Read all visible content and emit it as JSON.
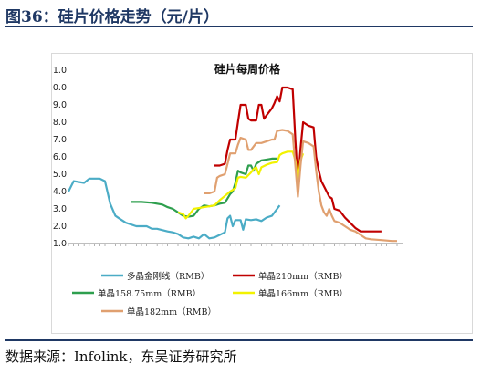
{
  "page": {
    "figure_title": "图36：硅片价格走势（元/片）",
    "source": "数据来源：Infolink，东吴证券研究所"
  },
  "colors": {
    "title": "#1f3864",
    "multi": "#4bacc6",
    "s210": "#c00000",
    "s158": "#2e9f4e",
    "s166": "#f2f200",
    "s182": "#e0a070"
  },
  "chart_data": {
    "type": "line",
    "title": "硅片每周价格",
    "xlabel": "",
    "ylabel": "",
    "ylim": [
      1.0,
      11.0
    ],
    "yticks": [
      "11.0",
      "10.0",
      "9.0",
      "8.0",
      "7.0",
      "6.0",
      "5.0",
      "4.0",
      "3.0",
      "2.0",
      "1.0"
    ],
    "x_tick_count": 64,
    "x_range": [
      0,
      63
    ],
    "grid": false,
    "legend_position": "bottom",
    "series": [
      {
        "name": "多晶金刚线（RMB）",
        "color": "#4bacc6",
        "points": [
          [
            0,
            4.0
          ],
          [
            1,
            4.6
          ],
          [
            3,
            4.5
          ],
          [
            4,
            4.75
          ],
          [
            6,
            4.75
          ],
          [
            7,
            4.6
          ],
          [
            8,
            3.3
          ],
          [
            9,
            2.6
          ],
          [
            10,
            2.4
          ],
          [
            11,
            2.2
          ],
          [
            13,
            2.0
          ],
          [
            14,
            2.0
          ],
          [
            15,
            2.0
          ],
          [
            16,
            1.85
          ],
          [
            17,
            1.85
          ],
          [
            19,
            1.7
          ],
          [
            20,
            1.65
          ],
          [
            21,
            1.55
          ],
          [
            22,
            1.35
          ],
          [
            23,
            1.3
          ],
          [
            24,
            1.4
          ],
          [
            25,
            1.3
          ],
          [
            26,
            1.55
          ],
          [
            27,
            1.3
          ],
          [
            28,
            1.35
          ],
          [
            29,
            1.5
          ],
          [
            30,
            1.65
          ],
          [
            30.5,
            2.45
          ],
          [
            31,
            2.6
          ],
          [
            31.5,
            2.0
          ],
          [
            32,
            2.35
          ],
          [
            33,
            2.35
          ],
          [
            33.5,
            1.8
          ],
          [
            34,
            2.4
          ],
          [
            35,
            2.35
          ],
          [
            36,
            2.4
          ],
          [
            37,
            2.3
          ],
          [
            38,
            2.5
          ],
          [
            39,
            2.6
          ],
          [
            40,
            3.0
          ],
          [
            40.5,
            3.2
          ]
        ]
      },
      {
        "name": "单晶210mm（RMB）",
        "color": "#c00000",
        "points": [
          [
            28,
            5.5
          ],
          [
            29,
            5.5
          ],
          [
            30,
            5.6
          ],
          [
            30.5,
            6.4
          ],
          [
            31,
            7.0
          ],
          [
            32,
            7.0
          ],
          [
            32.5,
            8.0
          ],
          [
            33,
            9.0
          ],
          [
            34,
            9.0
          ],
          [
            34.5,
            8.2
          ],
          [
            35,
            8.1
          ],
          [
            36,
            8.1
          ],
          [
            36.5,
            9.0
          ],
          [
            37,
            9.0
          ],
          [
            37.5,
            8.2
          ],
          [
            38,
            8.4
          ],
          [
            39,
            8.8
          ],
          [
            39.5,
            9.1
          ],
          [
            40,
            9.5
          ],
          [
            40.5,
            9.2
          ],
          [
            41,
            10.0
          ],
          [
            42,
            10.0
          ],
          [
            43,
            9.9
          ],
          [
            43.5,
            7.0
          ],
          [
            44,
            4.5
          ],
          [
            44.5,
            6.5
          ],
          [
            45,
            8.0
          ],
          [
            45.5,
            7.9
          ],
          [
            46,
            7.8
          ],
          [
            47,
            7.7
          ],
          [
            47.5,
            6.0
          ],
          [
            48,
            5.2
          ],
          [
            48.5,
            4.6
          ],
          [
            49,
            4.3
          ],
          [
            49.5,
            4.0
          ],
          [
            50,
            3.7
          ],
          [
            50.5,
            3.6
          ],
          [
            51,
            3.0
          ],
          [
            52,
            2.9
          ],
          [
            53,
            2.5
          ],
          [
            54,
            2.2
          ],
          [
            55,
            1.9
          ],
          [
            56,
            1.7
          ],
          [
            58,
            1.7
          ],
          [
            60,
            1.7
          ]
        ]
      },
      {
        "name": "单晶158.75mm（RMB）",
        "color": "#2e9f4e",
        "points": [
          [
            12,
            3.4
          ],
          [
            14,
            3.4
          ],
          [
            16,
            3.35
          ],
          [
            18,
            3.25
          ],
          [
            19,
            3.1
          ],
          [
            20,
            3.0
          ],
          [
            21,
            2.8
          ],
          [
            22,
            2.6
          ],
          [
            23,
            2.55
          ],
          [
            24,
            2.6
          ],
          [
            25,
            3.0
          ],
          [
            26,
            3.2
          ],
          [
            27,
            3.15
          ],
          [
            28,
            3.2
          ],
          [
            29,
            3.3
          ],
          [
            30,
            3.35
          ],
          [
            30.5,
            3.6
          ],
          [
            31,
            3.85
          ],
          [
            31.5,
            4.0
          ],
          [
            32,
            4.5
          ],
          [
            32.5,
            5.2
          ],
          [
            33,
            5.1
          ],
          [
            34,
            5.0
          ],
          [
            34.5,
            5.5
          ],
          [
            35,
            5.5
          ],
          [
            35.5,
            5.2
          ],
          [
            36,
            5.6
          ],
          [
            37,
            5.8
          ],
          [
            38,
            5.85
          ],
          [
            39,
            5.9
          ],
          [
            40,
            5.9
          ]
        ]
      },
      {
        "name": "单晶166mm（RMB）",
        "color": "#f2f200",
        "points": [
          [
            21,
            2.8
          ],
          [
            22,
            2.7
          ],
          [
            22.5,
            2.45
          ],
          [
            23,
            2.6
          ],
          [
            24,
            3.0
          ],
          [
            25,
            3.05
          ],
          [
            26,
            3.1
          ],
          [
            27,
            3.15
          ],
          [
            28,
            3.2
          ],
          [
            29,
            3.5
          ],
          [
            30,
            3.75
          ],
          [
            31,
            4.0
          ],
          [
            32,
            4.2
          ],
          [
            32.5,
            4.8
          ],
          [
            33,
            4.85
          ],
          [
            34,
            4.8
          ],
          [
            35,
            5.1
          ],
          [
            35.5,
            5.3
          ],
          [
            36,
            5.4
          ],
          [
            36.5,
            5.0
          ],
          [
            37,
            5.4
          ],
          [
            38,
            5.55
          ],
          [
            39,
            5.65
          ],
          [
            40,
            5.7
          ],
          [
            40.5,
            6.1
          ],
          [
            41,
            6.2
          ],
          [
            42,
            6.3
          ],
          [
            43,
            6.3
          ],
          [
            43.5,
            5.8
          ],
          [
            44,
            4.5
          ],
          [
            44.5,
            5.8
          ],
          [
            45,
            6.2
          ]
        ]
      },
      {
        "name": "单晶182mm（RMB）",
        "color": "#e0a070",
        "points": [
          [
            26,
            3.9
          ],
          [
            27,
            3.9
          ],
          [
            28,
            4.0
          ],
          [
            28.5,
            4.8
          ],
          [
            29,
            4.9
          ],
          [
            30,
            5.0
          ],
          [
            30.5,
            5.6
          ],
          [
            31,
            6.2
          ],
          [
            32,
            6.2
          ],
          [
            32.5,
            6.7
          ],
          [
            33,
            7.1
          ],
          [
            34,
            7.0
          ],
          [
            34.5,
            6.4
          ],
          [
            35,
            6.4
          ],
          [
            35.5,
            6.6
          ],
          [
            36,
            6.8
          ],
          [
            37,
            6.8
          ],
          [
            38,
            6.9
          ],
          [
            39,
            7.0
          ],
          [
            39.5,
            7.0
          ],
          [
            40,
            7.5
          ],
          [
            41,
            7.55
          ],
          [
            42,
            7.5
          ],
          [
            43,
            7.3
          ],
          [
            43.5,
            5.5
          ],
          [
            44,
            3.7
          ],
          [
            44.5,
            5.5
          ],
          [
            45,
            6.9
          ],
          [
            46,
            6.8
          ],
          [
            47,
            6.6
          ],
          [
            47.5,
            5.2
          ],
          [
            48,
            4.0
          ],
          [
            48.5,
            3.2
          ],
          [
            49,
            2.8
          ],
          [
            49.5,
            2.6
          ],
          [
            50,
            3.0
          ],
          [
            50.5,
            2.6
          ],
          [
            51,
            2.3
          ],
          [
            52,
            2.2
          ],
          [
            53,
            2.0
          ],
          [
            54,
            1.8
          ],
          [
            55,
            1.7
          ],
          [
            56,
            1.5
          ],
          [
            57,
            1.3
          ],
          [
            58,
            1.25
          ],
          [
            60,
            1.2
          ],
          [
            62,
            1.15
          ],
          [
            63,
            1.15
          ]
        ]
      }
    ]
  }
}
